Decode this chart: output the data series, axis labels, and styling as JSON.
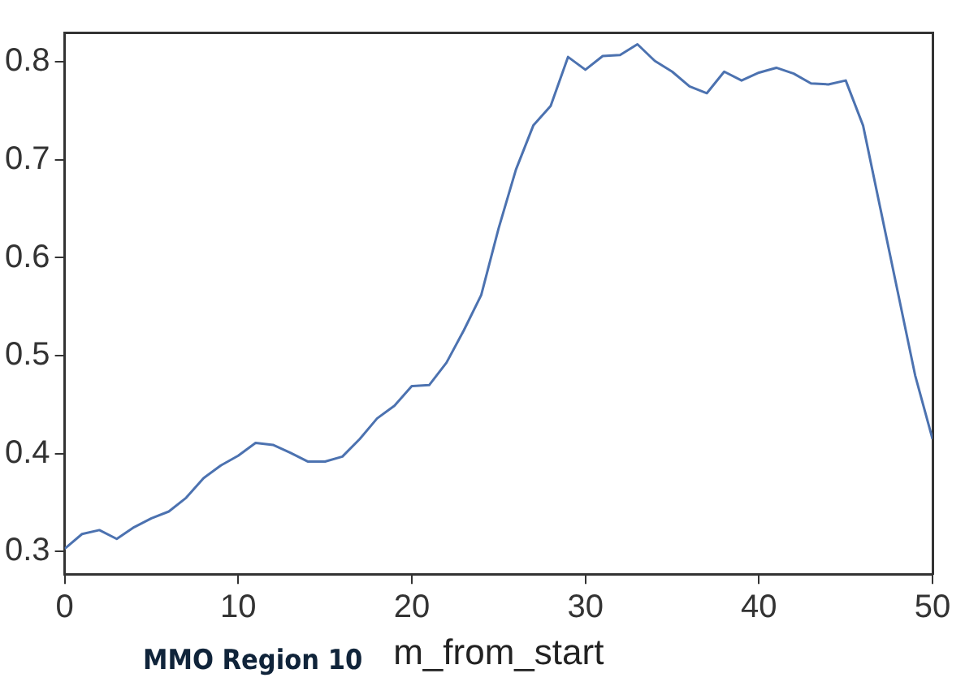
{
  "chart_data": {
    "type": "line",
    "xlabel": "m_from_start",
    "annotations": [
      "MMO Region 10"
    ],
    "x": [
      0,
      1,
      2,
      3,
      4,
      5,
      6,
      7,
      8,
      9,
      10,
      11,
      12,
      13,
      14,
      15,
      16,
      17,
      18,
      19,
      20,
      21,
      22,
      23,
      24,
      25,
      26,
      27,
      28,
      29,
      30,
      31,
      32,
      33,
      34,
      35,
      36,
      37,
      38,
      39,
      40,
      41,
      42,
      43,
      44,
      45,
      46,
      47,
      48,
      49,
      50
    ],
    "series": [
      {
        "color": "#4c72b0",
        "values": [
          0.303,
          0.318,
          0.322,
          0.313,
          0.325,
          0.334,
          0.341,
          0.355,
          0.375,
          0.388,
          0.398,
          0.411,
          0.409,
          0.401,
          0.392,
          0.392,
          0.397,
          0.415,
          0.436,
          0.449,
          0.469,
          0.47,
          0.493,
          0.526,
          0.562,
          0.63,
          0.69,
          0.735,
          0.755,
          0.805,
          0.792,
          0.806,
          0.807,
          0.818,
          0.801,
          0.79,
          0.775,
          0.768,
          0.79,
          0.781,
          0.789,
          0.794,
          0.788,
          0.778,
          0.777,
          0.781,
          0.735,
          0.65,
          0.565,
          0.48,
          0.415
        ]
      }
    ],
    "xlim": [
      0,
      50
    ],
    "xticks": [
      0,
      10,
      20,
      30,
      40,
      50
    ],
    "ylim": [
      0.277,
      0.83
    ],
    "yticks": [
      0.3,
      0.4,
      0.5,
      0.6,
      0.7,
      0.8
    ],
    "grid": false,
    "legend": false,
    "marker": "none",
    "line_style": "solid"
  }
}
